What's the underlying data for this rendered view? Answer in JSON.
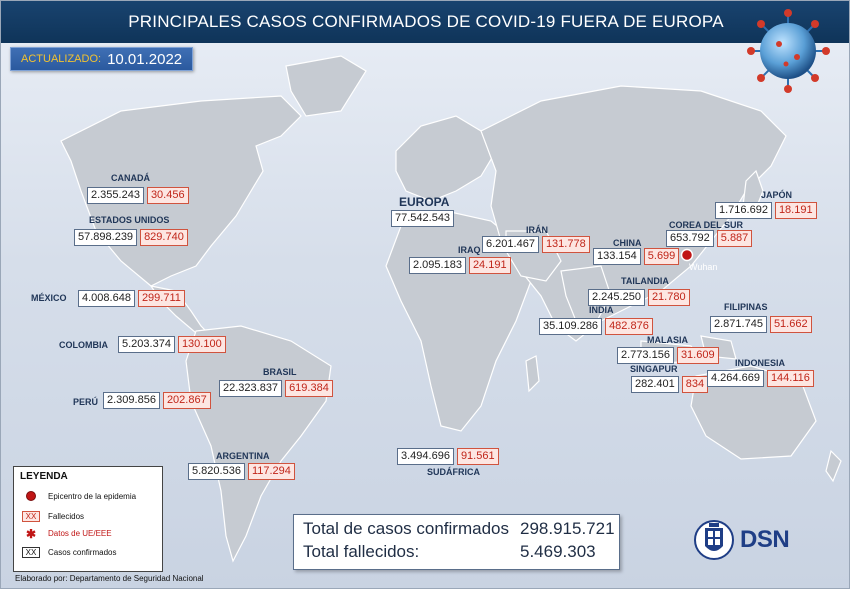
{
  "header": {
    "title": "PRINCIPALES CASOS CONFIRMADOS DE COVID-19 FUERA DE EUROPA"
  },
  "updated": {
    "label": "ACTUALIZADO:",
    "date": "10.01.2022"
  },
  "colors": {
    "header": "#15406b",
    "confirmed_border": "#5a6e8a",
    "deaths_text": "#c0261a",
    "deaths_bg": "#fde6e2",
    "land": "#c4c9d0",
    "epicenter": "#c01515"
  },
  "countries": {
    "canada": {
      "name": "CANADÁ",
      "confirmed": "2.355.243",
      "deaths": "30.456"
    },
    "usa": {
      "name": "ESTADOS UNIDOS",
      "confirmed": "57.898.239",
      "deaths": "829.740"
    },
    "mexico": {
      "name": "MÉXICO",
      "confirmed": "4.008.648",
      "deaths": "299.711"
    },
    "colombia": {
      "name": "COLOMBIA",
      "confirmed": "5.203.374",
      "deaths": "130.100"
    },
    "brasil": {
      "name": "BRASIL",
      "confirmed": "22.323.837",
      "deaths": "619.384"
    },
    "peru": {
      "name": "PERÚ",
      "confirmed": "2.309.856",
      "deaths": "202.867"
    },
    "argentina": {
      "name": "ARGENTINA",
      "confirmed": "5.820.536",
      "deaths": "117.294"
    },
    "europa": {
      "name": "EUROPA",
      "confirmed": "77.542.543"
    },
    "iran": {
      "name": "IRÁN",
      "confirmed": "6.201.467",
      "deaths": "131.778"
    },
    "iraq": {
      "name": "IRAQ",
      "confirmed": "2.095.183",
      "deaths": "24.191"
    },
    "china": {
      "name": "CHINA",
      "confirmed": "133.154",
      "deaths": "5.699"
    },
    "corea": {
      "name": "COREA DEL SUR",
      "confirmed": "653.792",
      "deaths": "5.887"
    },
    "japon": {
      "name": "JAPÓN",
      "confirmed": "1.716.692",
      "deaths": "18.191"
    },
    "tailandia": {
      "name": "TAILANDIA",
      "confirmed": "2.245.250",
      "deaths": "21.780"
    },
    "india": {
      "name": "INDIA",
      "confirmed": "35.109.286",
      "deaths": "482.876"
    },
    "filipinas": {
      "name": "FILIPINAS",
      "confirmed": "2.871.745",
      "deaths": "51.662"
    },
    "malasia": {
      "name": "MALASIA",
      "confirmed": "2.773.156",
      "deaths": "31.609"
    },
    "singapur": {
      "name": "SINGAPUR",
      "confirmed": "282.401",
      "deaths": "834"
    },
    "indonesia": {
      "name": "INDONESIA",
      "confirmed": "4.264.669",
      "deaths": "144.116"
    },
    "sudafrica": {
      "name": "SUDÁFRICA",
      "confirmed": "3.494.696",
      "deaths": "91.561"
    }
  },
  "epicenter": {
    "label": "Wuhan"
  },
  "legend": {
    "title": "LEYENDA",
    "epicenter": "Epicentro de la epidemia",
    "deaths_symbol": "XX",
    "deaths": "Fallecidos",
    "eu_symbol": "✱",
    "eu_data": "Datos de UE/EEE",
    "confirmed_symbol": "XX",
    "confirmed": "Casos confirmados"
  },
  "totals": {
    "confirmed_label": "Total de casos confirmados",
    "confirmed_value": "298.915.721",
    "deaths_label": "Total fallecidos:",
    "deaths_value": "5.469.303"
  },
  "credit": "Elaborado por: Departamento de Seguridad Nacional",
  "logo": {
    "text": "DSN"
  },
  "icons": {
    "virus": "coronavirus-icon",
    "epicenter": "epicenter-dot-icon",
    "emblem": "spain-coat-of-arms-icon"
  }
}
